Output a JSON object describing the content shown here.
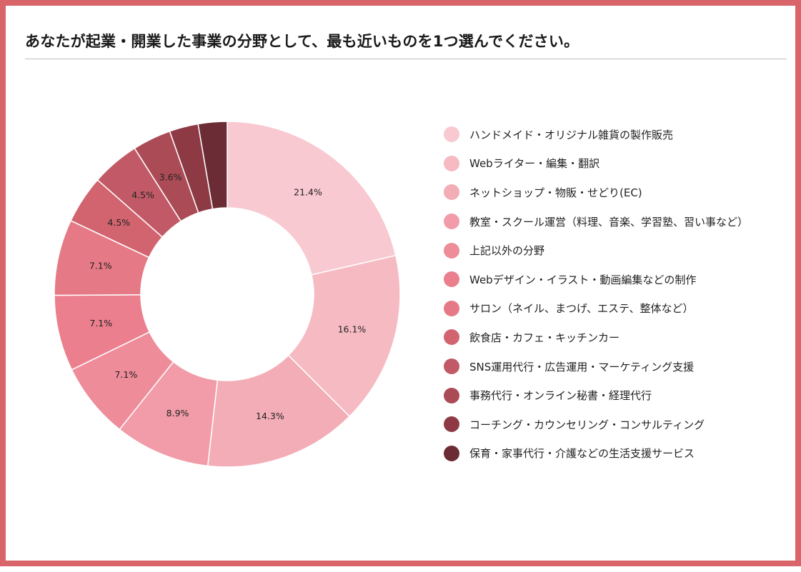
{
  "title": "あなたが起業・開業した事業の分野として、最も近いものを1つ選んでください。",
  "chart_data": {
    "type": "pie",
    "style": "donut",
    "legend_position": "right",
    "categories": [
      "ハンドメイド・オリジナル雑貨の製作販売",
      "Webライター・編集・翻訳",
      "ネットショップ・物販・せどり(EC)",
      "教室・スクール運営（料理、音楽、学習塾、習い事など）",
      "上記以外の分野",
      "Webデザイン・イラスト・動画編集などの制作",
      "サロン（ネイル、まつげ、エステ、整体など）",
      "飲食店・カフェ・キッチンカー",
      "SNS運用代行・広告運用・マーケティング支援",
      "事務代行・オンライン秘書・経理代行",
      "コーチング・カウンセリング・コンサルティング",
      "保育・家事代行・介護などの生活支援サービス"
    ],
    "values": [
      21.4,
      16.1,
      14.3,
      8.9,
      7.1,
      7.1,
      7.1,
      4.5,
      4.5,
      3.6,
      2.7,
      2.7
    ],
    "data_labels": [
      "21.4%",
      "16.1%",
      "14.3%",
      "8.9%",
      "7.1%",
      "7.1%",
      "7.1%",
      "4.5%",
      "4.5%",
      "3.6%",
      "",
      ""
    ],
    "colors": [
      "#f8c9d0",
      "#f6bac3",
      "#f3adb6",
      "#f19ca8",
      "#ee8c9a",
      "#eb7f8e",
      "#e57a86",
      "#d2646f",
      "#c15a66",
      "#ab4b56",
      "#8d3a45",
      "#6b2c35"
    ]
  }
}
